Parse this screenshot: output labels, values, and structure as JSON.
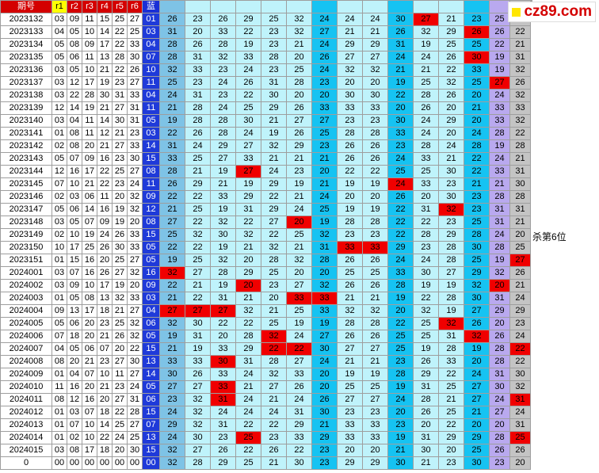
{
  "watermark": "cz89.com",
  "note_text": "杀第6位",
  "colors": {
    "header_red": "#d40000",
    "blue": "#1f3ad9",
    "sky": "#7ec3e6",
    "cyan": "#16c3f2",
    "light_cyan": "#bff3fb",
    "purple": "#b9a9ef",
    "gray": "#c4c4c4",
    "highlight": "#f00000"
  },
  "headers": [
    "期号",
    "r1",
    "r2",
    "r3",
    "r4",
    "r5",
    "r6",
    "蓝",
    "",
    "",
    "",
    "",
    "",
    "",
    "",
    "",
    "",
    "",
    "",
    "",
    "",
    "",
    "",
    "",
    ""
  ],
  "rows": [
    {
      "p": "2023132",
      "r": [
        "03",
        "09",
        "11",
        "15",
        "25",
        "27"
      ],
      "b": "01",
      "v": [
        "26",
        "23",
        "26",
        "29",
        "25",
        "32",
        "24",
        "24",
        "24",
        "30",
        "27",
        "21",
        "23",
        "25",
        "23"
      ]
    },
    {
      "p": "2023133",
      "r": [
        "04",
        "05",
        "10",
        "14",
        "22",
        "25"
      ],
      "b": "03",
      "v": [
        "31",
        "20",
        "33",
        "22",
        "23",
        "32",
        "27",
        "21",
        "21",
        "26",
        "32",
        "29",
        "26",
        "26",
        "22"
      ]
    },
    {
      "p": "2023134",
      "r": [
        "05",
        "08",
        "09",
        "17",
        "22",
        "33"
      ],
      "b": "04",
      "v": [
        "28",
        "26",
        "28",
        "19",
        "23",
        "21",
        "24",
        "29",
        "29",
        "31",
        "19",
        "25",
        "25",
        "22",
        "21"
      ]
    },
    {
      "p": "2023135",
      "r": [
        "05",
        "06",
        "11",
        "13",
        "28",
        "30"
      ],
      "b": "07",
      "v": [
        "28",
        "31",
        "32",
        "33",
        "28",
        "20",
        "26",
        "27",
        "27",
        "24",
        "24",
        "26",
        "30",
        "19",
        "31"
      ]
    },
    {
      "p": "2023136",
      "r": [
        "03",
        "05",
        "10",
        "21",
        "22",
        "26"
      ],
      "b": "10",
      "v": [
        "32",
        "33",
        "23",
        "24",
        "23",
        "25",
        "24",
        "32",
        "32",
        "21",
        "21",
        "22",
        "33",
        "19",
        "32"
      ]
    },
    {
      "p": "2023137",
      "r": [
        "03",
        "12",
        "17",
        "19",
        "23",
        "27"
      ],
      "b": "11",
      "v": [
        "25",
        "23",
        "24",
        "26",
        "31",
        "28",
        "23",
        "20",
        "20",
        "19",
        "25",
        "32",
        "25",
        "27",
        "26"
      ]
    },
    {
      "p": "2023138",
      "r": [
        "03",
        "22",
        "28",
        "30",
        "31",
        "33"
      ],
      "b": "04",
      "v": [
        "24",
        "31",
        "23",
        "22",
        "30",
        "20",
        "20",
        "30",
        "30",
        "22",
        "28",
        "26",
        "20",
        "24",
        "32"
      ]
    },
    {
      "p": "2023139",
      "r": [
        "12",
        "14",
        "19",
        "21",
        "27",
        "31"
      ],
      "b": "11",
      "v": [
        "21",
        "28",
        "24",
        "25",
        "29",
        "26",
        "33",
        "33",
        "33",
        "20",
        "26",
        "20",
        "21",
        "33",
        "33"
      ]
    },
    {
      "p": "2023140",
      "r": [
        "03",
        "04",
        "11",
        "14",
        "30",
        "31"
      ],
      "b": "05",
      "v": [
        "19",
        "28",
        "28",
        "30",
        "21",
        "27",
        "27",
        "23",
        "23",
        "30",
        "24",
        "29",
        "20",
        "33",
        "32"
      ]
    },
    {
      "p": "2023141",
      "r": [
        "01",
        "08",
        "11",
        "12",
        "21",
        "23"
      ],
      "b": "03",
      "v": [
        "22",
        "26",
        "28",
        "24",
        "19",
        "26",
        "25",
        "28",
        "28",
        "33",
        "24",
        "20",
        "24",
        "28",
        "22"
      ]
    },
    {
      "p": "2023142",
      "r": [
        "02",
        "08",
        "20",
        "21",
        "27",
        "33"
      ],
      "b": "14",
      "v": [
        "31",
        "24",
        "29",
        "27",
        "32",
        "29",
        "23",
        "26",
        "26",
        "23",
        "28",
        "24",
        "28",
        "19",
        "28"
      ]
    },
    {
      "p": "2023143",
      "r": [
        "05",
        "07",
        "09",
        "16",
        "23",
        "30"
      ],
      "b": "15",
      "v": [
        "33",
        "25",
        "27",
        "33",
        "21",
        "21",
        "21",
        "26",
        "26",
        "24",
        "33",
        "21",
        "22",
        "24",
        "21"
      ]
    },
    {
      "p": "2023144",
      "r": [
        "12",
        "16",
        "17",
        "22",
        "25",
        "27"
      ],
      "b": "08",
      "v": [
        "28",
        "21",
        "19",
        "27",
        "24",
        "23",
        "20",
        "22",
        "22",
        "25",
        "25",
        "30",
        "22",
        "33",
        "31"
      ]
    },
    {
      "p": "2023145",
      "r": [
        "07",
        "10",
        "21",
        "22",
        "23",
        "24"
      ],
      "b": "11",
      "v": [
        "26",
        "29",
        "21",
        "19",
        "29",
        "19",
        "21",
        "19",
        "19",
        "24",
        "33",
        "23",
        "21",
        "21",
        "30"
      ]
    },
    {
      "p": "2023146",
      "r": [
        "02",
        "03",
        "06",
        "11",
        "20",
        "32"
      ],
      "b": "09",
      "v": [
        "22",
        "22",
        "33",
        "29",
        "22",
        "21",
        "24",
        "20",
        "20",
        "26",
        "20",
        "30",
        "23",
        "28",
        "28"
      ]
    },
    {
      "p": "2023147",
      "r": [
        "05",
        "06",
        "14",
        "16",
        "19",
        "32"
      ],
      "b": "12",
      "v": [
        "21",
        "25",
        "19",
        "31",
        "29",
        "24",
        "25",
        "19",
        "19",
        "22",
        "31",
        "32",
        "23",
        "31",
        "31"
      ]
    },
    {
      "p": "2023148",
      "r": [
        "03",
        "05",
        "07",
        "09",
        "19",
        "20"
      ],
      "b": "08",
      "v": [
        "27",
        "22",
        "32",
        "22",
        "27",
        "20",
        "19",
        "28",
        "28",
        "22",
        "22",
        "23",
        "25",
        "31",
        "21"
      ]
    },
    {
      "p": "2023149",
      "r": [
        "02",
        "10",
        "19",
        "24",
        "26",
        "33"
      ],
      "b": "15",
      "v": [
        "25",
        "32",
        "30",
        "32",
        "22",
        "25",
        "32",
        "23",
        "23",
        "22",
        "28",
        "29",
        "28",
        "24",
        "20"
      ]
    },
    {
      "p": "2023150",
      "r": [
        "10",
        "17",
        "25",
        "26",
        "30",
        "33"
      ],
      "b": "05",
      "v": [
        "22",
        "22",
        "19",
        "21",
        "32",
        "21",
        "31",
        "33",
        "33",
        "29",
        "23",
        "28",
        "30",
        "28",
        "25"
      ]
    },
    {
      "p": "2023151",
      "r": [
        "01",
        "15",
        "16",
        "20",
        "25",
        "27"
      ],
      "b": "05",
      "v": [
        "19",
        "25",
        "32",
        "20",
        "28",
        "32",
        "28",
        "26",
        "26",
        "24",
        "24",
        "28",
        "25",
        "19",
        "27"
      ]
    },
    {
      "p": "2024001",
      "r": [
        "03",
        "07",
        "16",
        "26",
        "27",
        "32"
      ],
      "b": "16",
      "v": [
        "32",
        "27",
        "28",
        "29",
        "25",
        "20",
        "20",
        "25",
        "25",
        "33",
        "30",
        "27",
        "29",
        "32",
        "26"
      ]
    },
    {
      "p": "2024002",
      "r": [
        "03",
        "09",
        "10",
        "17",
        "19",
        "20"
      ],
      "b": "09",
      "v": [
        "22",
        "21",
        "19",
        "20",
        "23",
        "27",
        "32",
        "26",
        "26",
        "28",
        "19",
        "19",
        "32",
        "20",
        "21"
      ]
    },
    {
      "p": "2024003",
      "r": [
        "01",
        "05",
        "08",
        "13",
        "32",
        "33"
      ],
      "b": "03",
      "v": [
        "21",
        "22",
        "31",
        "21",
        "20",
        "33",
        "33",
        "21",
        "21",
        "19",
        "22",
        "28",
        "30",
        "31",
        "24"
      ]
    },
    {
      "p": "2024004",
      "r": [
        "09",
        "13",
        "17",
        "18",
        "21",
        "27"
      ],
      "b": "04",
      "v": [
        "27",
        "27",
        "27",
        "32",
        "21",
        "25",
        "33",
        "32",
        "32",
        "20",
        "32",
        "19",
        "27",
        "29",
        "29"
      ]
    },
    {
      "p": "2024005",
      "r": [
        "05",
        "06",
        "20",
        "23",
        "25",
        "32"
      ],
      "b": "06",
      "v": [
        "32",
        "30",
        "22",
        "22",
        "25",
        "19",
        "19",
        "28",
        "28",
        "22",
        "25",
        "32",
        "26",
        "20",
        "23"
      ]
    },
    {
      "p": "2024006",
      "r": [
        "07",
        "18",
        "20",
        "21",
        "26",
        "32"
      ],
      "b": "05",
      "v": [
        "19",
        "31",
        "20",
        "28",
        "32",
        "24",
        "27",
        "26",
        "26",
        "25",
        "25",
        "31",
        "32",
        "26",
        "24"
      ]
    },
    {
      "p": "2024007",
      "r": [
        "04",
        "05",
        "06",
        "07",
        "20",
        "22"
      ],
      "b": "15",
      "v": [
        "21",
        "19",
        "33",
        "29",
        "22",
        "22",
        "30",
        "27",
        "27",
        "25",
        "19",
        "28",
        "19",
        "28",
        "22"
      ]
    },
    {
      "p": "2024008",
      "r": [
        "08",
        "20",
        "21",
        "23",
        "27",
        "30"
      ],
      "b": "13",
      "v": [
        "33",
        "33",
        "30",
        "31",
        "28",
        "27",
        "24",
        "21",
        "21",
        "23",
        "26",
        "33",
        "20",
        "28",
        "22"
      ]
    },
    {
      "p": "2024009",
      "r": [
        "01",
        "04",
        "07",
        "10",
        "11",
        "27"
      ],
      "b": "14",
      "v": [
        "30",
        "26",
        "33",
        "24",
        "32",
        "33",
        "20",
        "19",
        "19",
        "28",
        "29",
        "22",
        "24",
        "31",
        "30"
      ]
    },
    {
      "p": "2024010",
      "r": [
        "11",
        "16",
        "20",
        "21",
        "23",
        "24"
      ],
      "b": "05",
      "v": [
        "27",
        "27",
        "33",
        "21",
        "27",
        "26",
        "20",
        "25",
        "25",
        "19",
        "31",
        "25",
        "27",
        "30",
        "32"
      ]
    },
    {
      "p": "2024011",
      "r": [
        "08",
        "12",
        "16",
        "20",
        "27",
        "31"
      ],
      "b": "06",
      "v": [
        "23",
        "32",
        "31",
        "24",
        "21",
        "24",
        "26",
        "27",
        "27",
        "24",
        "28",
        "21",
        "27",
        "24",
        "31"
      ]
    },
    {
      "p": "2024012",
      "r": [
        "01",
        "03",
        "07",
        "18",
        "22",
        "28"
      ],
      "b": "15",
      "v": [
        "24",
        "32",
        "24",
        "24",
        "24",
        "31",
        "30",
        "23",
        "23",
        "20",
        "26",
        "25",
        "21",
        "27",
        "24"
      ]
    },
    {
      "p": "2024013",
      "r": [
        "01",
        "07",
        "10",
        "14",
        "25",
        "27"
      ],
      "b": "07",
      "v": [
        "29",
        "32",
        "31",
        "22",
        "22",
        "29",
        "21",
        "33",
        "33",
        "23",
        "20",
        "22",
        "20",
        "20",
        "31"
      ]
    },
    {
      "p": "2024014",
      "r": [
        "01",
        "02",
        "10",
        "22",
        "24",
        "25"
      ],
      "b": "13",
      "v": [
        "24",
        "30",
        "23",
        "25",
        "23",
        "33",
        "29",
        "33",
        "33",
        "19",
        "31",
        "29",
        "29",
        "28",
        "25"
      ]
    },
    {
      "p": "2024015",
      "r": [
        "03",
        "08",
        "17",
        "18",
        "20",
        "30"
      ],
      "b": "15",
      "v": [
        "32",
        "27",
        "26",
        "22",
        "26",
        "22",
        "23",
        "20",
        "20",
        "21",
        "30",
        "20",
        "25",
        "26",
        "26"
      ]
    },
    {
      "p": "0",
      "r": [
        "00",
        "00",
        "00",
        "00",
        "00",
        "00"
      ],
      "b": "00",
      "v": [
        "32",
        "28",
        "29",
        "25",
        "21",
        "30",
        "23",
        "29",
        "29",
        "30",
        "21",
        "23",
        "30",
        "23",
        "20"
      ]
    }
  ],
  "highlights": [
    [
      0,
      10
    ],
    [
      1,
      12
    ],
    [
      3,
      12
    ],
    [
      5,
      13
    ],
    [
      12,
      3
    ],
    [
      13,
      9
    ],
    [
      15,
      11
    ],
    [
      16,
      5
    ],
    [
      18,
      7
    ],
    [
      18,
      8
    ],
    [
      19,
      14
    ],
    [
      20,
      0
    ],
    [
      21,
      3
    ],
    [
      21,
      13
    ],
    [
      22,
      5
    ],
    [
      22,
      6
    ],
    [
      23,
      0
    ],
    [
      23,
      1
    ],
    [
      23,
      2
    ],
    [
      24,
      11
    ],
    [
      25,
      4
    ],
    [
      25,
      12
    ],
    [
      26,
      4
    ],
    [
      26,
      5
    ],
    [
      26,
      14
    ],
    [
      27,
      2
    ],
    [
      29,
      2
    ],
    [
      30,
      2
    ],
    [
      30,
      14
    ],
    [
      33,
      3
    ],
    [
      33,
      14
    ]
  ]
}
